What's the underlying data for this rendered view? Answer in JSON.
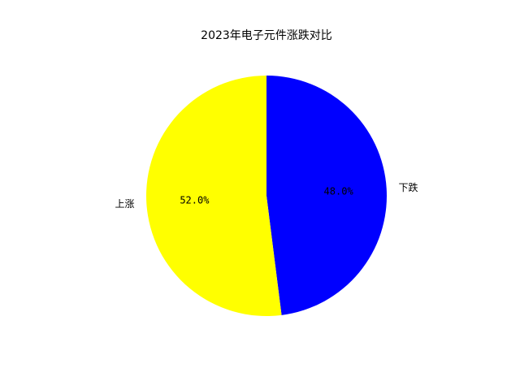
{
  "chart_data": {
    "type": "pie",
    "title": "2023年电子元件涨跌对比",
    "slices": [
      {
        "label": "下跌",
        "value": 48.0,
        "pct_label": "48.0%",
        "color": "#0000ff"
      },
      {
        "label": "上涨",
        "value": 52.0,
        "pct_label": "52.0%",
        "color": "#ffff00"
      }
    ],
    "start_angle_deg": 90,
    "direction": "clockwise"
  }
}
